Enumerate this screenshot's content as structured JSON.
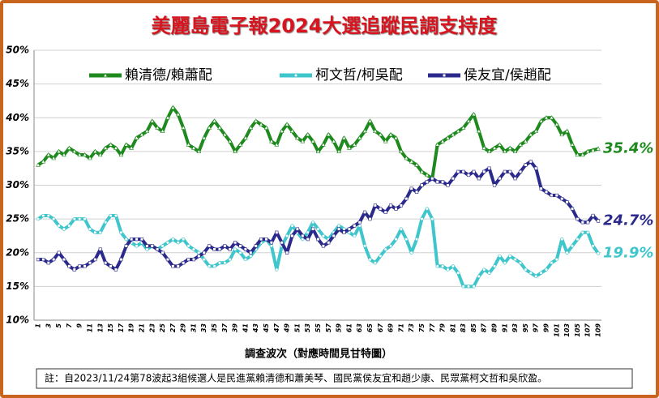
{
  "chart_data": {
    "type": "line",
    "title": "美麗島電子報2024大選追蹤民調支持度",
    "x_label": "調查波次（對應時間見甘特圖）",
    "note": "註：自2023/11/24第78波起3組候選人是民進黨賴清德和蕭美琴、國民黨侯友宜和趙少康、民眾黨柯文哲和吳欣盈。",
    "categories": [
      "1",
      null,
      "3",
      null,
      "5",
      null,
      "7",
      null,
      "9",
      null,
      "11",
      null,
      "13",
      null,
      "15",
      null,
      "17",
      null,
      "19",
      null,
      "21",
      null,
      "23",
      null,
      "25",
      null,
      "27",
      null,
      "29",
      null,
      "31",
      null,
      "33",
      null,
      "35",
      null,
      "37",
      null,
      "39",
      null,
      "41",
      null,
      "43",
      null,
      "45",
      null,
      "47",
      null,
      "49",
      null,
      "51",
      null,
      "53",
      null,
      "55",
      null,
      "57",
      null,
      "59",
      null,
      "61",
      null,
      "63",
      null,
      "65",
      null,
      "67",
      null,
      "69",
      null,
      "71",
      null,
      "73",
      null,
      "75",
      null,
      "77",
      null,
      "79",
      null,
      "81",
      null,
      "83",
      null,
      "85",
      null,
      "87",
      null,
      "89",
      null,
      "91",
      null,
      "93",
      null,
      "95",
      null,
      "97",
      null,
      "99",
      null,
      "101",
      null,
      "103",
      null,
      "105",
      null,
      "107",
      null,
      "109"
    ],
    "ylim": [
      10,
      50
    ],
    "yticks": [
      {
        "value": 10,
        "label": "10%"
      },
      {
        "value": 15,
        "label": "15%"
      },
      {
        "value": 20,
        "label": "20%"
      },
      {
        "value": 25,
        "label": "25%"
      },
      {
        "value": 30,
        "label": "30%"
      },
      {
        "value": 35,
        "label": "35%"
      },
      {
        "value": 40,
        "label": "40%"
      },
      {
        "value": 45,
        "label": "45%"
      },
      {
        "value": 50,
        "label": "50%"
      }
    ],
    "grid": true,
    "series": [
      {
        "name": "賴清德/賴蕭配",
        "color": "#1e8a1e",
        "marker": "triangle",
        "values": [
          33,
          33.5,
          34.5,
          34,
          35,
          34.5,
          35.5,
          35,
          34.5,
          34.5,
          34,
          35,
          34.5,
          35.5,
          36,
          35.5,
          34.5,
          36,
          35.5,
          37,
          37.5,
          38,
          39.5,
          38.5,
          38,
          40,
          41.5,
          40.5,
          38.5,
          36,
          35.5,
          35,
          37,
          38.5,
          39.5,
          38.5,
          37.5,
          36.5,
          35,
          36,
          37,
          38.5,
          39.5,
          39,
          38.5,
          36.5,
          36,
          38,
          39,
          38,
          37,
          36.5,
          37.5,
          36.5,
          35,
          36,
          37.5,
          36.5,
          35,
          37,
          35.5,
          36,
          37,
          38,
          39.5,
          38,
          37.5,
          36.5,
          37.5,
          37,
          35,
          34,
          33.5,
          33,
          32,
          31.5,
          31,
          36,
          36.5,
          37,
          37.5,
          38,
          38.5,
          39.5,
          40.5,
          38,
          35.5,
          35,
          35.5,
          36,
          35,
          35.5,
          35,
          36,
          36.5,
          37.5,
          38,
          39.5,
          40,
          40,
          39,
          37.5,
          38,
          36,
          34.5,
          34.5,
          35,
          35.2,
          35.4
        ],
        "value_labels": [
          null,
          null,
          null,
          null,
          null,
          null,
          null,
          null,
          null,
          null,
          null,
          null,
          null,
          null,
          null,
          null,
          null,
          null,
          null,
          null,
          null,
          null,
          null,
          null,
          null,
          null,
          null,
          null,
          null,
          null,
          null,
          null,
          null,
          null,
          null,
          null,
          null,
          null,
          null,
          null,
          null,
          null,
          null,
          null,
          null,
          null,
          null,
          null,
          null,
          null,
          null,
          null,
          null,
          null,
          null,
          null,
          null,
          null,
          null,
          null,
          null,
          null,
          null,
          null,
          null,
          null,
          null,
          null,
          null,
          null,
          null,
          null,
          null,
          null,
          null,
          null,
          null,
          null,
          null,
          null,
          null,
          null,
          null,
          null,
          null,
          null,
          null,
          null,
          null,
          null,
          null,
          null,
          null,
          null,
          null,
          null,
          null,
          null,
          null,
          null,
          null,
          null,
          null,
          null,
          null,
          null,
          null,
          null,
          "35.4%"
        ]
      },
      {
        "name": "柯文哲/柯吳配",
        "color": "#3fc6cc",
        "marker": "circle",
        "values": [
          25,
          25.5,
          25.5,
          25,
          24,
          23.5,
          24,
          25,
          25,
          25,
          23.5,
          23,
          23,
          24.5,
          25.5,
          25.5,
          23,
          22,
          21.5,
          21,
          21.5,
          20.5,
          21,
          20.5,
          21,
          21.5,
          22,
          21.5,
          22,
          21,
          20.5,
          20,
          19,
          18,
          18,
          18.5,
          18.5,
          19,
          20.5,
          20,
          19,
          19.5,
          20.5,
          21.5,
          22,
          21,
          17.5,
          21,
          22.5,
          24,
          23,
          22,
          23,
          24.5,
          23.5,
          22.5,
          22,
          23,
          24,
          23.5,
          23,
          22.5,
          24,
          21,
          19,
          18.5,
          19.5,
          20.5,
          21,
          22,
          23.5,
          22,
          20,
          22,
          25,
          26.5,
          25,
          18,
          18,
          17.5,
          18,
          17,
          15,
          15,
          15,
          16.5,
          17.5,
          17,
          18,
          19.5,
          18.5,
          19.5,
          19,
          18.5,
          17.5,
          17,
          16.5,
          17,
          17.5,
          18.5,
          19,
          22,
          20,
          21,
          22,
          23,
          23,
          21,
          19.9
        ],
        "value_labels": [
          null,
          null,
          null,
          null,
          null,
          null,
          null,
          null,
          null,
          null,
          null,
          null,
          null,
          null,
          null,
          null,
          null,
          null,
          null,
          null,
          null,
          null,
          null,
          null,
          null,
          null,
          null,
          null,
          null,
          null,
          null,
          null,
          null,
          null,
          null,
          null,
          null,
          null,
          null,
          null,
          null,
          null,
          null,
          null,
          null,
          null,
          null,
          null,
          null,
          null,
          null,
          null,
          null,
          null,
          null,
          null,
          null,
          null,
          null,
          null,
          null,
          null,
          null,
          null,
          null,
          null,
          null,
          null,
          null,
          null,
          null,
          null,
          null,
          null,
          null,
          null,
          null,
          null,
          null,
          null,
          null,
          null,
          null,
          null,
          null,
          null,
          null,
          null,
          null,
          null,
          null,
          null,
          null,
          null,
          null,
          null,
          null,
          null,
          null,
          null,
          null,
          null,
          null,
          null,
          null,
          null,
          null,
          null,
          "19.9%"
        ]
      },
      {
        "name": "侯友宜/侯趙配",
        "color": "#2b2a8c",
        "marker": "square",
        "values": [
          19,
          19,
          18.5,
          19,
          20,
          19,
          18,
          17.5,
          18,
          18,
          18.5,
          19,
          20.5,
          18.5,
          18,
          17.5,
          19,
          21,
          22,
          22,
          22,
          21,
          21,
          20.5,
          20,
          19,
          18,
          18,
          18.5,
          19,
          19,
          19.5,
          20,
          21,
          20.5,
          20.5,
          21,
          20.5,
          21.5,
          21,
          20.5,
          20,
          21,
          22,
          22,
          21.5,
          23,
          21.5,
          20,
          22.5,
          23.5,
          22.5,
          22,
          23.5,
          22,
          21,
          21.5,
          22.5,
          23.5,
          23,
          23.5,
          24,
          24.5,
          26,
          25,
          27,
          26.5,
          26,
          27,
          26.5,
          27,
          28,
          29.5,
          29,
          30,
          30.5,
          31,
          30.5,
          30.5,
          30,
          31,
          32,
          32,
          31.5,
          32,
          31,
          32,
          32.5,
          30,
          31,
          32,
          32,
          31,
          32,
          33,
          33.5,
          32.5,
          29.5,
          29,
          28.5,
          28.5,
          28,
          27.5,
          26.5,
          25,
          24.5,
          24.5,
          25.5,
          24.7
        ],
        "value_labels": [
          null,
          null,
          null,
          null,
          null,
          null,
          null,
          null,
          null,
          null,
          null,
          null,
          null,
          null,
          null,
          null,
          null,
          null,
          null,
          null,
          null,
          null,
          null,
          null,
          null,
          null,
          null,
          null,
          null,
          null,
          null,
          null,
          null,
          null,
          null,
          null,
          null,
          null,
          null,
          null,
          null,
          null,
          null,
          null,
          null,
          null,
          null,
          null,
          null,
          null,
          null,
          null,
          null,
          null,
          null,
          null,
          null,
          null,
          null,
          null,
          null,
          null,
          null,
          null,
          null,
          null,
          null,
          null,
          null,
          null,
          null,
          null,
          null,
          null,
          null,
          null,
          null,
          null,
          null,
          null,
          null,
          null,
          null,
          null,
          null,
          null,
          null,
          null,
          null,
          null,
          null,
          null,
          null,
          null,
          null,
          null,
          null,
          null,
          null,
          null,
          null,
          null,
          null,
          null,
          null,
          null,
          null,
          null,
          "24.7%"
        ]
      }
    ]
  }
}
